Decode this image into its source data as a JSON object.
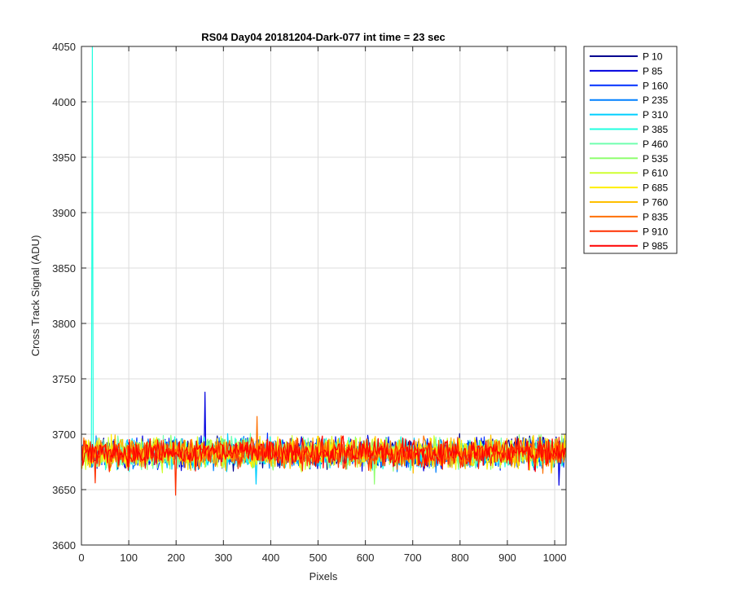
{
  "chart_data": {
    "type": "line",
    "title": "RS04 Day04 20181204-Dark-077 int time = 23 sec",
    "xlabel": "Pixels",
    "ylabel": "Cross Track Signal (ADU)",
    "xlim": [
      0,
      1024
    ],
    "ylim": [
      3600,
      4050
    ],
    "xticks": [
      0,
      100,
      200,
      300,
      400,
      500,
      600,
      700,
      800,
      900,
      1000
    ],
    "yticks": [
      3600,
      3650,
      3700,
      3750,
      3800,
      3850,
      3900,
      3950,
      4000,
      4050
    ],
    "grid": true,
    "legend_position": "outside-top-right",
    "x_range": [
      1,
      1024
    ],
    "noise_band": {
      "center": 3683,
      "amplitude": 11
    },
    "series": [
      {
        "name": "P 10",
        "color": "#00008f",
        "spikes": []
      },
      {
        "name": "P 85",
        "color": "#0000df",
        "spikes": [
          {
            "x": 262,
            "y": 3738
          },
          {
            "x": 1010,
            "y": 3654
          }
        ]
      },
      {
        "name": "P 160",
        "color": "#0030ff",
        "spikes": []
      },
      {
        "name": "P 235",
        "color": "#0080ff",
        "spikes": []
      },
      {
        "name": "P 310",
        "color": "#00cfff",
        "spikes": [
          {
            "x": 370,
            "y": 3655
          }
        ]
      },
      {
        "name": "P 385",
        "color": "#20ffdf",
        "spikes": [
          {
            "x": 24,
            "y": 4050
          }
        ]
      },
      {
        "name": "P 460",
        "color": "#70ffaf",
        "spikes": []
      },
      {
        "name": "P 535",
        "color": "#8fff70",
        "spikes": [
          {
            "x": 620,
            "y": 3655
          }
        ]
      },
      {
        "name": "P 610",
        "color": "#cfff30",
        "spikes": []
      },
      {
        "name": "P 685",
        "color": "#ffef00",
        "spikes": []
      },
      {
        "name": "P 760",
        "color": "#ffbf00",
        "spikes": []
      },
      {
        "name": "P 835",
        "color": "#ff7000",
        "spikes": [
          {
            "x": 372,
            "y": 3716
          }
        ]
      },
      {
        "name": "P 910",
        "color": "#ff3000",
        "spikes": [
          {
            "x": 200,
            "y": 3645
          },
          {
            "x": 30,
            "y": 3656
          }
        ]
      },
      {
        "name": "P 985",
        "color": "#ff0000",
        "spikes": []
      }
    ]
  }
}
